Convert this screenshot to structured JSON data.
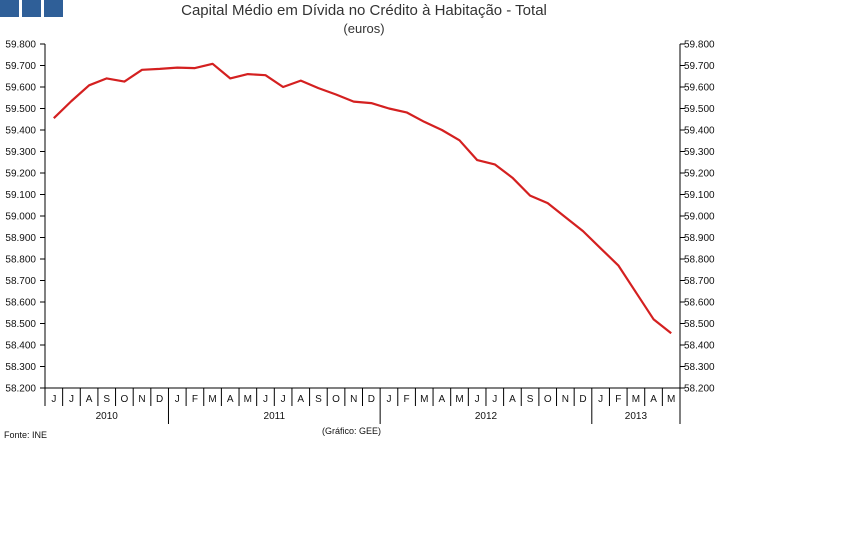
{
  "brand": {
    "color": "#2f5f98"
  },
  "chart_data": {
    "type": "line",
    "title": "Capital Médio em Dívida no Crédito à Habitação - Total",
    "subtitle": "(euros)",
    "xlabel": "",
    "ylabel": "",
    "ylim": [
      58200,
      59800
    ],
    "ytick_values": [
      58200,
      58300,
      58400,
      58500,
      58600,
      58700,
      58800,
      58900,
      59000,
      59100,
      59200,
      59300,
      59400,
      59500,
      59600,
      59700,
      59800
    ],
    "ytick_labels": [
      "58.200",
      "58.300",
      "58.400",
      "58.500",
      "58.600",
      "58.700",
      "58.800",
      "58.900",
      "59.000",
      "59.100",
      "59.200",
      "59.300",
      "59.400",
      "59.500",
      "59.600",
      "59.700",
      "59.800"
    ],
    "categories": [
      "J",
      "J",
      "A",
      "S",
      "O",
      "N",
      "D",
      "J",
      "F",
      "M",
      "A",
      "M",
      "J",
      "J",
      "A",
      "S",
      "O",
      "N",
      "D",
      "J",
      "F",
      "M",
      "A",
      "M",
      "J",
      "J",
      "A",
      "S",
      "O",
      "N",
      "D",
      "J",
      "F",
      "M",
      "A",
      "M"
    ],
    "years": [
      {
        "label": "2010",
        "start": 0,
        "count": 7
      },
      {
        "label": "2011",
        "start": 7,
        "count": 12
      },
      {
        "label": "2012",
        "start": 19,
        "count": 12
      },
      {
        "label": "2013",
        "start": 31,
        "count": 5
      }
    ],
    "series": [
      {
        "color": "#d42020",
        "values": [
          59455,
          59535,
          59608,
          59640,
          59625,
          59680,
          59684,
          59690,
          59688,
          59708,
          59640,
          59660,
          59655,
          59600,
          59630,
          59595,
          59565,
          59532,
          59525,
          59500,
          59482,
          59438,
          59400,
          59352,
          59260,
          59240,
          59178,
          59095,
          59060,
          58995,
          58930,
          58850,
          58770,
          58645,
          58520,
          58455
        ]
      }
    ],
    "grid": false,
    "legend": "none"
  },
  "notes": {
    "source": "Fonte: INE",
    "credit": "(Gráfico: GEE)"
  }
}
